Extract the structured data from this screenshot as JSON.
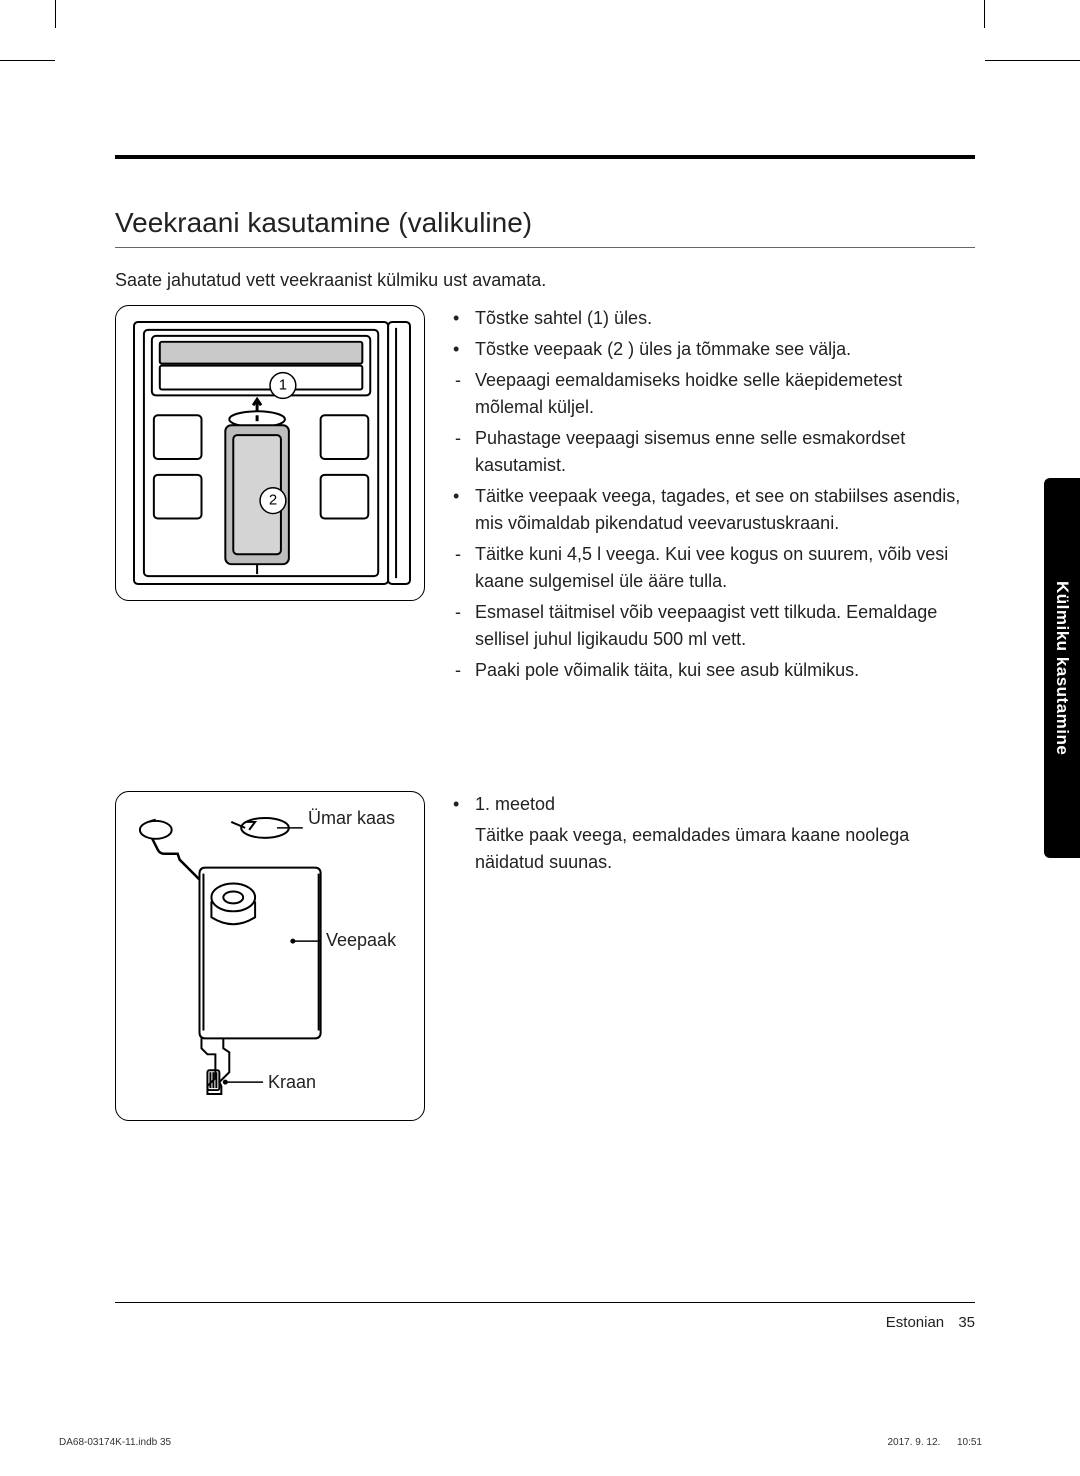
{
  "section_title": "Veekraani kasutamine (valikuline)",
  "subtitle": "Saate jahutatud vett veekraanist külmiku ust avamata.",
  "instructions": [
    {
      "type": "bullet",
      "text": "Tõstke sahtel (1) üles."
    },
    {
      "type": "bullet",
      "text": "Tõstke veepaak (2 ) üles ja tõmmake see välja."
    },
    {
      "type": "dash",
      "text": "Veepaagi eemaldamiseks hoidke selle käepidemetest mõlemal küljel."
    },
    {
      "type": "dash",
      "text": "Puhastage veepaagi sisemus enne selle esmakordset kasutamist."
    },
    {
      "type": "bullet",
      "text": "Täitke veepaak veega, tagades, et see on stabiilses asendis, mis võimaldab pikendatud veevarustuskraani."
    },
    {
      "type": "dash",
      "text": "Täitke kuni 4,5 l veega. Kui vee kogus on suurem, võib vesi kaane sulgemisel üle ääre tulla."
    },
    {
      "type": "dash",
      "text": "Esmasel täitmisel võib veepaagist vett tilkuda. Eemaldage sellisel juhul ligikaudu 500 ml vett."
    },
    {
      "type": "dash",
      "text": "Paaki pole võimalik täita, kui see asub külmikus."
    }
  ],
  "method_block": [
    {
      "type": "bullet",
      "text": "1. meetod"
    },
    {
      "type": "cont",
      "text": "Täitke paak veega, eemaldades ümara kaane noolega näidatud suunas."
    }
  ],
  "illus1_callouts": {
    "c1": "1",
    "c2": "2"
  },
  "illus2_labels": {
    "round_cover": "Ümar kaas",
    "water_tank": "Veepaak",
    "faucet": "Kraan"
  },
  "side_tab": "Külmiku kasutamine",
  "footer": {
    "lang": "Estonian",
    "page": "35"
  },
  "print_footer_left": "DA68-03174K-11.indb   35",
  "print_footer_right": "2017. 9. 12.      10:51",
  "colors": {
    "fg": "#000000",
    "bg": "#ffffff"
  }
}
